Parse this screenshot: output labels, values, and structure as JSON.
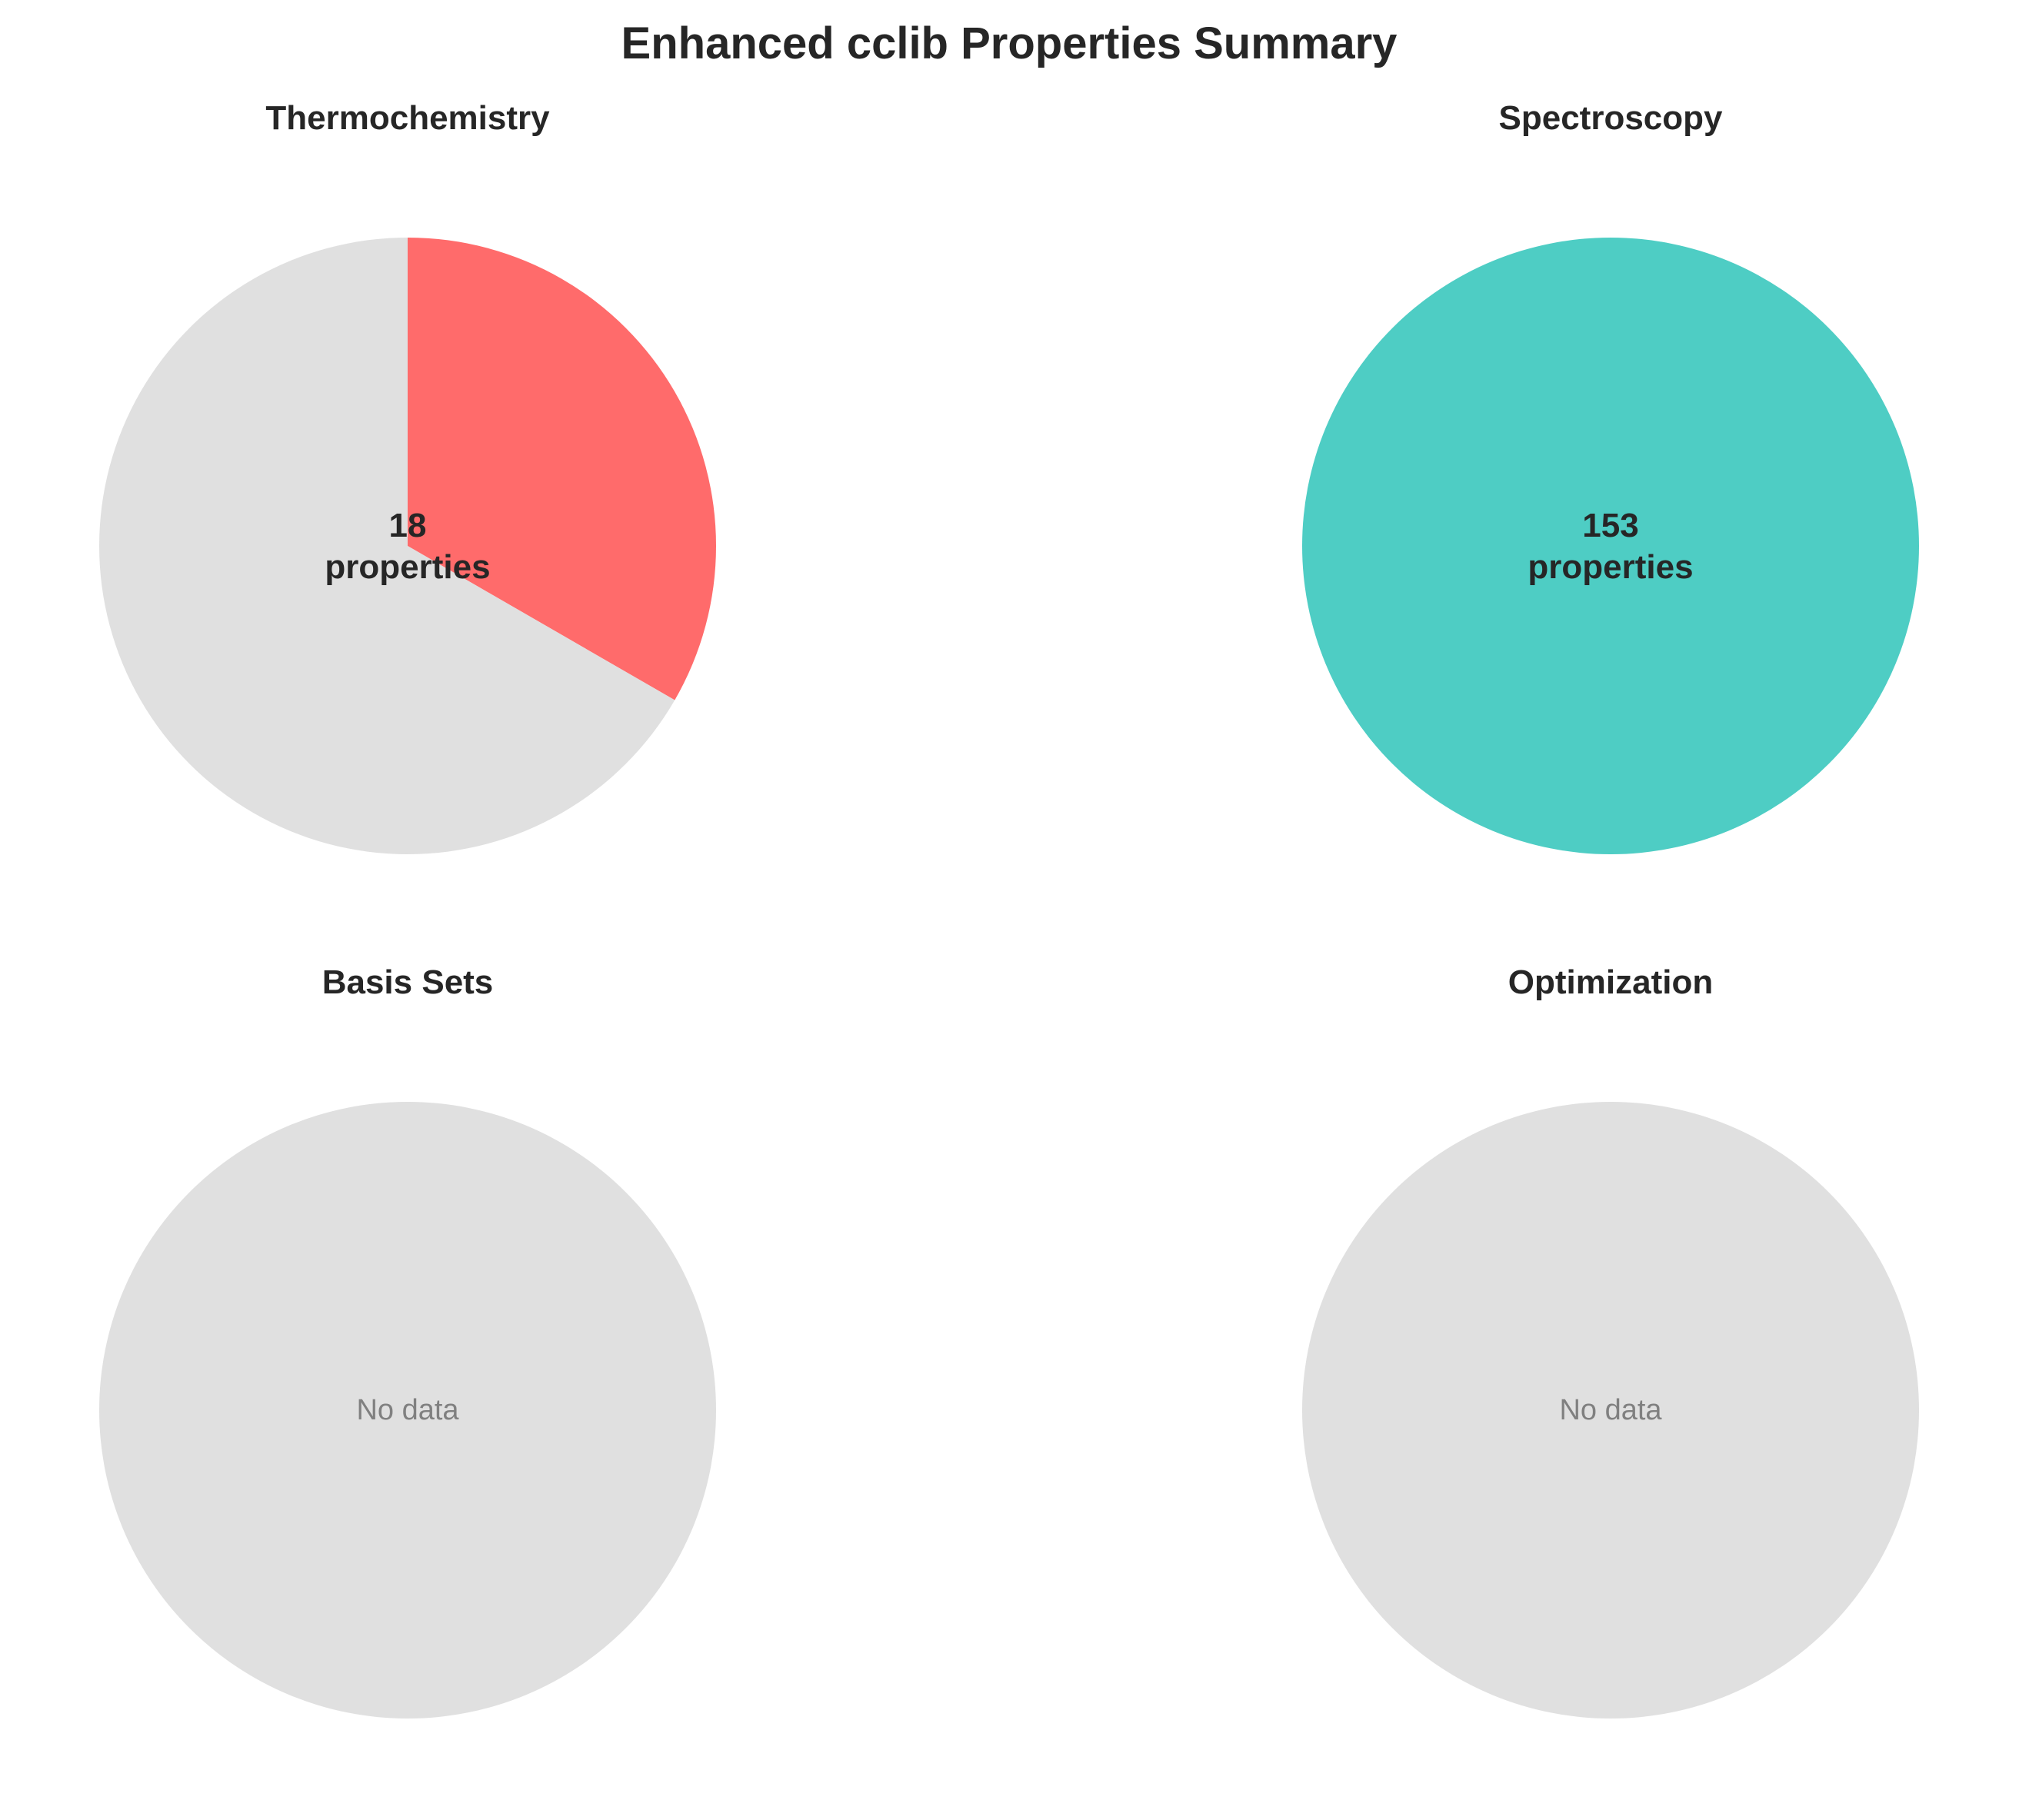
{
  "figure": {
    "title": "Enhanced cclib Properties Summary"
  },
  "chart_data": [
    {
      "type": "pie",
      "title": "Thermochemistry",
      "total_properties": 18,
      "count_label": "18",
      "unit_label": "properties",
      "slices": [
        {
          "value": 6,
          "color": "#FF6B6B"
        },
        {
          "value": 12,
          "color": "#E0E0E0"
        }
      ],
      "start_angle": "top",
      "direction": "clockwise"
    },
    {
      "type": "pie",
      "title": "Spectroscopy",
      "total_properties": 153,
      "count_label": "153",
      "unit_label": "properties",
      "slices": [
        {
          "value": 153,
          "color": "#4ECDC4"
        }
      ],
      "start_angle": "top",
      "direction": "clockwise"
    },
    {
      "type": "pie",
      "title": "Basis Sets",
      "total_properties": 0,
      "empty_label": "No data",
      "slices": [
        {
          "value": 1,
          "color": "#E0E0E0"
        }
      ]
    },
    {
      "type": "pie",
      "title": "Optimization",
      "total_properties": 0,
      "empty_label": "No data",
      "slices": [
        {
          "value": 1,
          "color": "#E0E0E0"
        }
      ]
    }
  ]
}
